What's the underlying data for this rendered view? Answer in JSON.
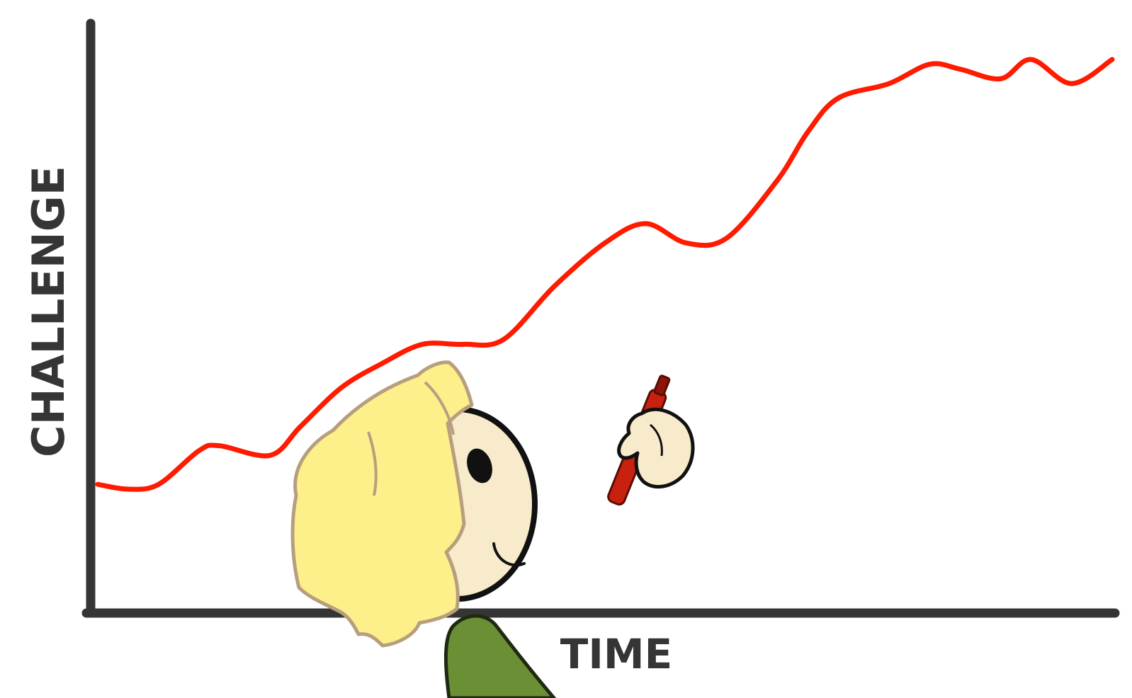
{
  "chart_data": {
    "type": "line",
    "xlabel": "TIME",
    "ylabel": "CHALLENGE",
    "grid": false,
    "legend": "none",
    "x": [
      0,
      0.03,
      0.06,
      0.1,
      0.12,
      0.17,
      0.2,
      0.24,
      0.28,
      0.32,
      0.36,
      0.4,
      0.45,
      0.5,
      0.54,
      0.58,
      0.62,
      0.67,
      0.7,
      0.73,
      0.78,
      0.82,
      0.85,
      0.89,
      0.92,
      0.96,
      1.0
    ],
    "series": [
      {
        "values": [
          0.12,
          0.11,
          0.12,
          0.19,
          0.2,
          0.18,
          0.24,
          0.32,
          0.37,
          0.41,
          0.41,
          0.42,
          0.53,
          0.62,
          0.66,
          0.62,
          0.63,
          0.75,
          0.85,
          0.92,
          0.95,
          0.99,
          0.98,
          0.96,
          1.0,
          0.95,
          1.0
        ]
      }
    ],
    "colors": {
      "line": "#ff1a00",
      "axis": "#353535",
      "hair": "#fdf08a",
      "hair_outline": "#b79f7e",
      "skin": "#f7ebcb",
      "shirt": "#6a8f34",
      "marker": "#c8210f"
    },
    "illustration": {
      "character": "blond-cartoon-kid",
      "hand_tool": "red-marker-icon"
    }
  }
}
